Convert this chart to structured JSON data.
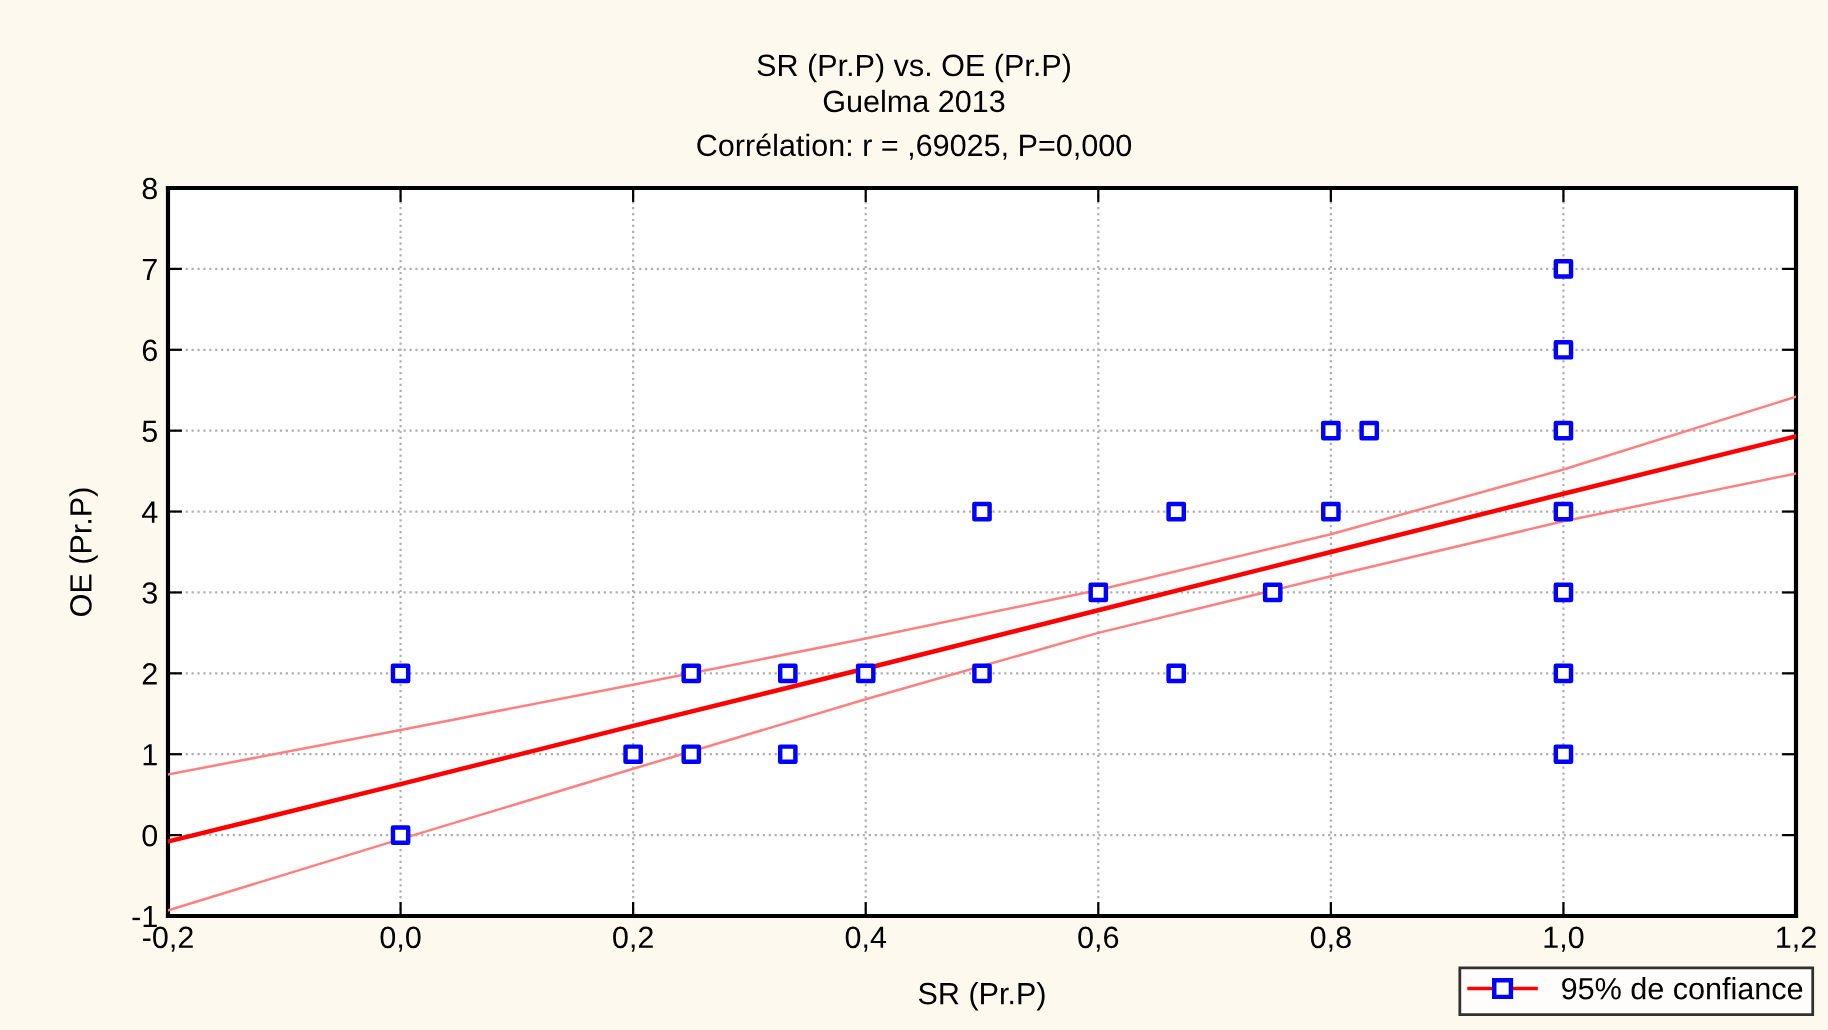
{
  "chart_data": {
    "type": "scatter",
    "title": "SR (Pr.P) vs. OE (Pr.P)",
    "subtitle": "Guelma 2013\nCorrélation: r = ,69025, P=0,000",
    "xlabel": "SR (Pr.P)",
    "ylabel": "OE (Pr.P)",
    "xlim": [
      -0.2,
      1.2
    ],
    "ylim": [
      -1,
      8
    ],
    "xticks": [
      {
        "value": -0.2,
        "label": "-0,2"
      },
      {
        "value": 0,
        "label": "0,0"
      },
      {
        "value": 0.2,
        "label": "0,2"
      },
      {
        "value": 0.4,
        "label": "0,4"
      },
      {
        "value": 0.6,
        "label": "0,6"
      },
      {
        "value": 0.8,
        "label": "0,8"
      },
      {
        "value": 1,
        "label": "1,0"
      },
      {
        "value": 1.2,
        "label": "1,2"
      }
    ],
    "yticks": [
      -1,
      0,
      1,
      2,
      3,
      4,
      5,
      6,
      7,
      8
    ],
    "grid": true,
    "legend": "bottom right",
    "marker": "square",
    "series": [
      {
        "name": "95% de confiance",
        "color": "#0000ff",
        "x": [
          0,
          0,
          0.2,
          0.25,
          0.25,
          0.333,
          0.333,
          0.4,
          0.5,
          0.5,
          0.6,
          0.667,
          0.667,
          0.75,
          0.8,
          0.833,
          0.8,
          1,
          1,
          1,
          1,
          1,
          1,
          1
        ],
        "values": [
          2,
          0,
          1,
          2,
          1,
          2,
          1,
          2,
          4,
          2,
          3,
          4,
          2,
          3,
          5,
          5,
          4,
          7,
          6,
          5,
          4,
          3,
          2,
          1
        ]
      },
      {
        "type": "line",
        "marker": "none",
        "color": "#ff0000",
        "x": [
          -0.2,
          0,
          0.2,
          0.4,
          0.6,
          0.8,
          1.0,
          1.2
        ],
        "values": [
          -0.08,
          0.63,
          1.35,
          2.06,
          2.78,
          3.5,
          4.22,
          4.93
        ]
      },
      {
        "type": "line",
        "marker": "none",
        "color": "#ff8080",
        "x": [
          -0.2,
          0,
          0.2,
          0.4,
          0.6,
          0.8,
          1.0,
          1.2
        ],
        "values": [
          0.75,
          1.3,
          1.86,
          2.43,
          3.03,
          3.72,
          4.52,
          5.42
        ]
      },
      {
        "type": "line",
        "marker": "none",
        "color": "#ff8080",
        "x": [
          -0.2,
          0,
          0.2,
          0.4,
          0.6,
          0.8,
          1.0,
          1.2
        ],
        "values": [
          -0.93,
          -0.05,
          0.82,
          1.68,
          2.5,
          3.2,
          3.88,
          4.47
        ]
      }
    ]
  }
}
